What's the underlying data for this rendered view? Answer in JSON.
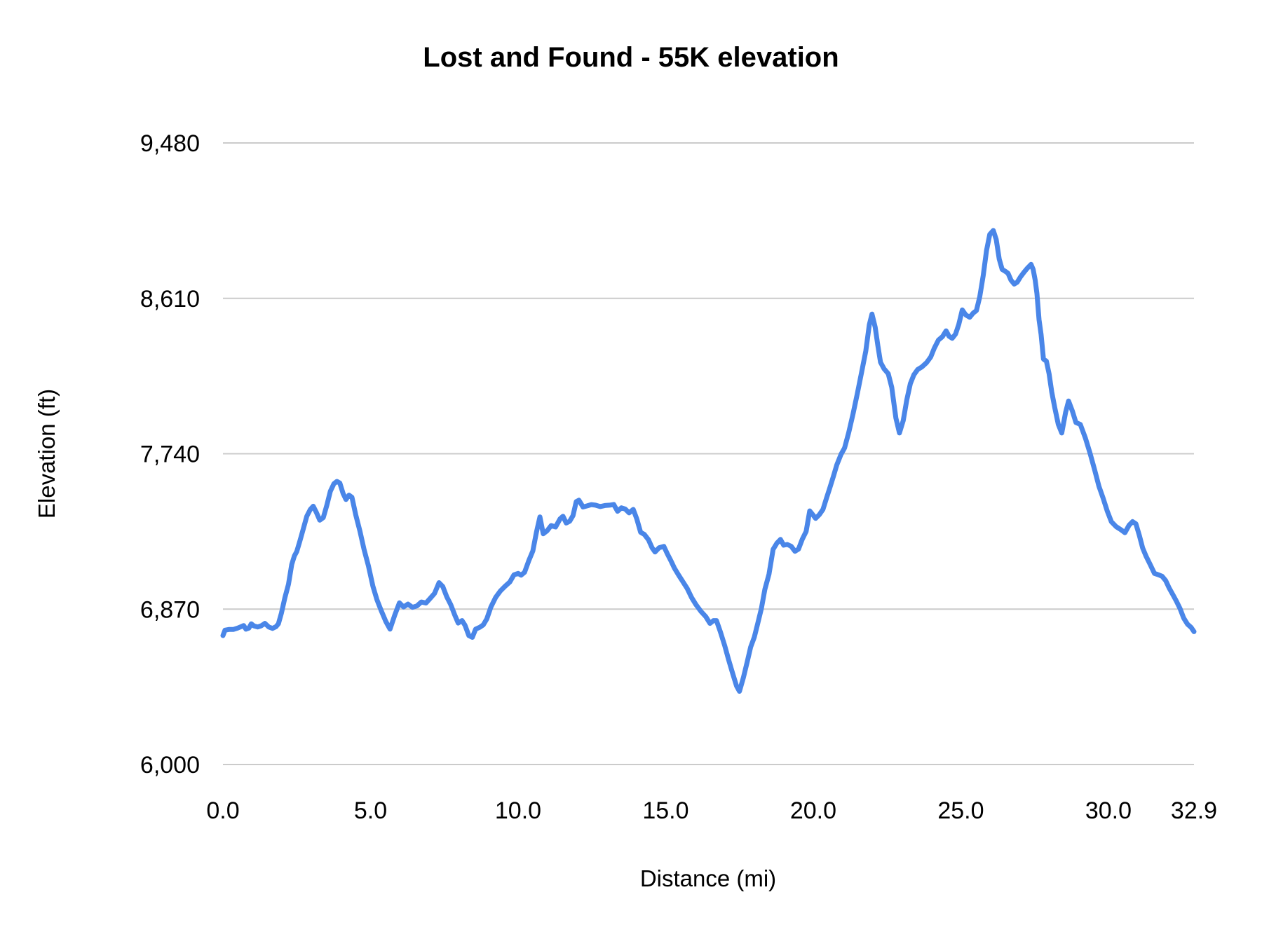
{
  "title": "Lost and Found - 55K elevation",
  "chart_data": {
    "type": "line",
    "title": "Lost and Found - 55K elevation",
    "xlabel": "Distance (mi)",
    "ylabel": "Elevation (ft)",
    "x_range": [
      0,
      32.9
    ],
    "y_range": [
      6000,
      9480
    ],
    "grid": "horizontal-only",
    "legend": "none",
    "line_color": "#4a86e8",
    "gridline_color": "#cbcbcb",
    "text_color": "#000000",
    "background_color": "#ffffff",
    "x_ticks": [
      {
        "value": 0,
        "label": "0.0"
      },
      {
        "value": 5,
        "label": "5.0"
      },
      {
        "value": 10,
        "label": "10.0"
      },
      {
        "value": 15,
        "label": "15.0"
      },
      {
        "value": 20,
        "label": "20.0"
      },
      {
        "value": 25,
        "label": "25.0"
      },
      {
        "value": 30,
        "label": "30.0"
      },
      {
        "value": 32.9,
        "label": "32.9"
      }
    ],
    "y_ticks": [
      {
        "value": 6000,
        "label": "6,000"
      },
      {
        "value": 6870,
        "label": "6,870"
      },
      {
        "value": 7740,
        "label": "7,740"
      },
      {
        "value": 8610,
        "label": "8,610"
      },
      {
        "value": 9480,
        "label": "9,480"
      }
    ],
    "series": [
      {
        "name": "elevation",
        "points": [
          [
            0,
            6722
          ],
          [
            0.07,
            6752
          ],
          [
            0.2,
            6756
          ],
          [
            0.35,
            6756
          ],
          [
            0.5,
            6764
          ],
          [
            0.62,
            6772
          ],
          [
            0.7,
            6778
          ],
          [
            0.78,
            6758
          ],
          [
            0.88,
            6764
          ],
          [
            0.96,
            6788
          ],
          [
            1.05,
            6776
          ],
          [
            1.18,
            6770
          ],
          [
            1.3,
            6777
          ],
          [
            1.42,
            6790
          ],
          [
            1.55,
            6770
          ],
          [
            1.68,
            6762
          ],
          [
            1.8,
            6772
          ],
          [
            1.88,
            6788
          ],
          [
            1.98,
            6848
          ],
          [
            2.1,
            6935
          ],
          [
            2.22,
            7010
          ],
          [
            2.33,
            7120
          ],
          [
            2.42,
            7168
          ],
          [
            2.5,
            7192
          ],
          [
            2.6,
            7248
          ],
          [
            2.72,
            7318
          ],
          [
            2.84,
            7390
          ],
          [
            2.96,
            7428
          ],
          [
            3.06,
            7446
          ],
          [
            3.17,
            7410
          ],
          [
            3.28,
            7368
          ],
          [
            3.4,
            7382
          ],
          [
            3.52,
            7452
          ],
          [
            3.64,
            7530
          ],
          [
            3.76,
            7572
          ],
          [
            3.86,
            7585
          ],
          [
            3.96,
            7576
          ],
          [
            4.07,
            7518
          ],
          [
            4.17,
            7484
          ],
          [
            4.27,
            7508
          ],
          [
            4.37,
            7496
          ],
          [
            4.5,
            7398
          ],
          [
            4.64,
            7308
          ],
          [
            4.78,
            7205
          ],
          [
            4.93,
            7112
          ],
          [
            5.08,
            6998
          ],
          [
            5.22,
            6922
          ],
          [
            5.37,
            6858
          ],
          [
            5.52,
            6800
          ],
          [
            5.66,
            6758
          ],
          [
            5.82,
            6836
          ],
          [
            5.98,
            6905
          ],
          [
            6.12,
            6882
          ],
          [
            6.27,
            6898
          ],
          [
            6.42,
            6880
          ],
          [
            6.57,
            6888
          ],
          [
            6.72,
            6910
          ],
          [
            6.88,
            6904
          ],
          [
            7.02,
            6930
          ],
          [
            7.17,
            6958
          ],
          [
            7.32,
            7018
          ],
          [
            7.45,
            6996
          ],
          [
            7.58,
            6940
          ],
          [
            7.72,
            6894
          ],
          [
            7.85,
            6838
          ],
          [
            7.97,
            6792
          ],
          [
            8.1,
            6806
          ],
          [
            8.2,
            6780
          ],
          [
            8.33,
            6722
          ],
          [
            8.45,
            6712
          ],
          [
            8.56,
            6758
          ],
          [
            8.7,
            6768
          ],
          [
            8.82,
            6782
          ],
          [
            8.94,
            6815
          ],
          [
            9.08,
            6882
          ],
          [
            9.24,
            6936
          ],
          [
            9.4,
            6972
          ],
          [
            9.56,
            6998
          ],
          [
            9.72,
            7022
          ],
          [
            9.86,
            7062
          ],
          [
            10.0,
            7070
          ],
          [
            10.1,
            7060
          ],
          [
            10.22,
            7076
          ],
          [
            10.36,
            7140
          ],
          [
            10.5,
            7196
          ],
          [
            10.62,
            7300
          ],
          [
            10.74,
            7386
          ],
          [
            10.85,
            7292
          ],
          [
            10.98,
            7308
          ],
          [
            11.12,
            7338
          ],
          [
            11.27,
            7330
          ],
          [
            11.42,
            7375
          ],
          [
            11.52,
            7390
          ],
          [
            11.63,
            7352
          ],
          [
            11.75,
            7362
          ],
          [
            11.86,
            7394
          ],
          [
            11.97,
            7472
          ],
          [
            12.06,
            7480
          ],
          [
            12.2,
            7442
          ],
          [
            12.34,
            7448
          ],
          [
            12.48,
            7455
          ],
          [
            12.62,
            7452
          ],
          [
            12.78,
            7444
          ],
          [
            12.94,
            7450
          ],
          [
            13.1,
            7452
          ],
          [
            13.24,
            7456
          ],
          [
            13.37,
            7418
          ],
          [
            13.5,
            7437
          ],
          [
            13.63,
            7430
          ],
          [
            13.76,
            7409
          ],
          [
            13.9,
            7428
          ],
          [
            14.02,
            7376
          ],
          [
            14.15,
            7300
          ],
          [
            14.28,
            7288
          ],
          [
            14.42,
            7258
          ],
          [
            14.54,
            7213
          ],
          [
            14.64,
            7190
          ],
          [
            14.78,
            7214
          ],
          [
            14.94,
            7221
          ],
          [
            15.06,
            7178
          ],
          [
            15.18,
            7140
          ],
          [
            15.3,
            7098
          ],
          [
            15.44,
            7060
          ],
          [
            15.58,
            7024
          ],
          [
            15.73,
            6985
          ],
          [
            15.88,
            6934
          ],
          [
            16.03,
            6894
          ],
          [
            16.2,
            6856
          ],
          [
            16.36,
            6828
          ],
          [
            16.5,
            6790
          ],
          [
            16.62,
            6806
          ],
          [
            16.72,
            6806
          ],
          [
            16.85,
            6745
          ],
          [
            17.0,
            6665
          ],
          [
            17.13,
            6588
          ],
          [
            17.27,
            6510
          ],
          [
            17.4,
            6440
          ],
          [
            17.5,
            6410
          ],
          [
            17.63,
            6485
          ],
          [
            17.76,
            6572
          ],
          [
            17.88,
            6658
          ],
          [
            18.0,
            6712
          ],
          [
            18.12,
            6790
          ],
          [
            18.24,
            6872
          ],
          [
            18.36,
            6980
          ],
          [
            18.5,
            7065
          ],
          [
            18.64,
            7205
          ],
          [
            18.77,
            7240
          ],
          [
            18.89,
            7260
          ],
          [
            19.0,
            7228
          ],
          [
            19.12,
            7232
          ],
          [
            19.25,
            7222
          ],
          [
            19.38,
            7194
          ],
          [
            19.5,
            7206
          ],
          [
            19.63,
            7262
          ],
          [
            19.76,
            7305
          ],
          [
            19.88,
            7420
          ],
          [
            19.98,
            7400
          ],
          [
            20.08,
            7378
          ],
          [
            20.2,
            7398
          ],
          [
            20.33,
            7428
          ],
          [
            20.45,
            7492
          ],
          [
            20.56,
            7548
          ],
          [
            20.68,
            7612
          ],
          [
            20.8,
            7678
          ],
          [
            20.94,
            7736
          ],
          [
            21.06,
            7772
          ],
          [
            21.2,
            7858
          ],
          [
            21.35,
            7965
          ],
          [
            21.5,
            8082
          ],
          [
            21.64,
            8198
          ],
          [
            21.78,
            8315
          ],
          [
            21.9,
            8462
          ],
          [
            21.99,
            8522
          ],
          [
            22.1,
            8448
          ],
          [
            22.19,
            8345
          ],
          [
            22.28,
            8252
          ],
          [
            22.4,
            8215
          ],
          [
            22.54,
            8188
          ],
          [
            22.66,
            8112
          ],
          [
            22.8,
            7940
          ],
          [
            22.92,
            7856
          ],
          [
            23.05,
            7926
          ],
          [
            23.17,
            8042
          ],
          [
            23.29,
            8132
          ],
          [
            23.41,
            8182
          ],
          [
            23.54,
            8212
          ],
          [
            23.68,
            8226
          ],
          [
            23.84,
            8250
          ],
          [
            23.98,
            8282
          ],
          [
            24.1,
            8330
          ],
          [
            24.24,
            8376
          ],
          [
            24.38,
            8396
          ],
          [
            24.5,
            8428
          ],
          [
            24.6,
            8398
          ],
          [
            24.71,
            8386
          ],
          [
            24.82,
            8410
          ],
          [
            24.93,
            8464
          ],
          [
            25.05,
            8545
          ],
          [
            25.17,
            8517
          ],
          [
            25.3,
            8504
          ],
          [
            25.42,
            8528
          ],
          [
            25.53,
            8542
          ],
          [
            25.64,
            8618
          ],
          [
            25.76,
            8738
          ],
          [
            25.87,
            8878
          ],
          [
            25.98,
            8968
          ],
          [
            26.1,
            8990
          ],
          [
            26.2,
            8940
          ],
          [
            26.3,
            8830
          ],
          [
            26.4,
            8772
          ],
          [
            26.5,
            8762
          ],
          [
            26.6,
            8750
          ],
          [
            26.7,
            8712
          ],
          [
            26.81,
            8690
          ],
          [
            26.91,
            8700
          ],
          [
            27.02,
            8730
          ],
          [
            27.14,
            8756
          ],
          [
            27.26,
            8780
          ],
          [
            27.38,
            8800
          ],
          [
            27.45,
            8772
          ],
          [
            27.52,
            8712
          ],
          [
            27.58,
            8636
          ],
          [
            27.65,
            8490
          ],
          [
            27.72,
            8408
          ],
          [
            27.8,
            8270
          ],
          [
            27.9,
            8258
          ],
          [
            27.99,
            8188
          ],
          [
            28.08,
            8086
          ],
          [
            28.18,
            8000
          ],
          [
            28.3,
            7905
          ],
          [
            28.42,
            7856
          ],
          [
            28.55,
            7972
          ],
          [
            28.65,
            8035
          ],
          [
            28.78,
            7978
          ],
          [
            28.9,
            7915
          ],
          [
            29.05,
            7904
          ],
          [
            29.22,
            7828
          ],
          [
            29.38,
            7742
          ],
          [
            29.54,
            7645
          ],
          [
            29.68,
            7558
          ],
          [
            29.82,
            7492
          ],
          [
            29.96,
            7420
          ],
          [
            30.1,
            7360
          ],
          [
            30.26,
            7332
          ],
          [
            30.42,
            7315
          ],
          [
            30.56,
            7298
          ],
          [
            30.7,
            7340
          ],
          [
            30.82,
            7360
          ],
          [
            30.93,
            7348
          ],
          [
            31.05,
            7282
          ],
          [
            31.16,
            7212
          ],
          [
            31.28,
            7165
          ],
          [
            31.42,
            7118
          ],
          [
            31.56,
            7070
          ],
          [
            31.7,
            7062
          ],
          [
            31.82,
            7054
          ],
          [
            31.94,
            7030
          ],
          [
            32.06,
            6988
          ],
          [
            32.18,
            6952
          ],
          [
            32.3,
            6916
          ],
          [
            32.43,
            6872
          ],
          [
            32.55,
            6820
          ],
          [
            32.68,
            6786
          ],
          [
            32.8,
            6768
          ],
          [
            32.9,
            6744
          ]
        ]
      }
    ]
  }
}
